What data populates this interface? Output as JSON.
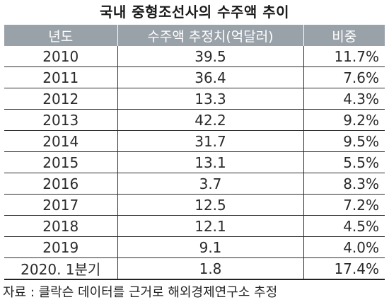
{
  "title": "국내 중형조선사의 수주액 추이",
  "table": {
    "headers": [
      "년도",
      "수주액 추정치(억달러)",
      "비중"
    ],
    "rows": [
      {
        "year": "2010",
        "amount": "39.5",
        "share": "11.7%"
      },
      {
        "year": "2011",
        "amount": "36.4",
        "share": "7.6%"
      },
      {
        "year": "2012",
        "amount": "13.3",
        "share": "4.3%"
      },
      {
        "year": "2013",
        "amount": "42.2",
        "share": "9.2%"
      },
      {
        "year": "2014",
        "amount": "31.7",
        "share": "9.5%"
      },
      {
        "year": "2015",
        "amount": "13.1",
        "share": "5.5%"
      },
      {
        "year": "2016",
        "amount": "3.7",
        "share": "8.3%"
      },
      {
        "year": "2017",
        "amount": "12.5",
        "share": "7.2%"
      },
      {
        "year": "2018",
        "amount": "12.1",
        "share": "4.5%"
      },
      {
        "year": "2019",
        "amount": "9.1",
        "share": "4.0%"
      },
      {
        "year": "2020. 1분기",
        "amount": "1.8",
        "share": "17.4%"
      }
    ]
  },
  "source": "자료 : 클락슨 데이터를 근거로 해외경제연구소 추정",
  "colors": {
    "header_bg": "#9aa2a9",
    "header_text": "#ffffff",
    "grid_line": "#2f2f2f"
  }
}
